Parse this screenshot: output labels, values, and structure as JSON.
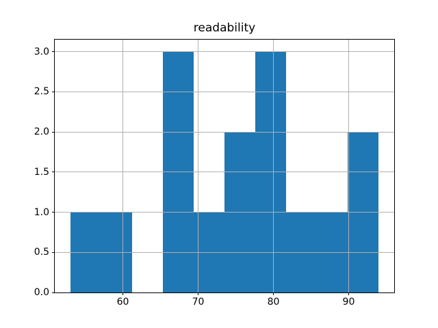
{
  "figure": {
    "background": "#ffffff"
  },
  "chart_data": {
    "type": "histogram",
    "title": "readability",
    "xlabel": "",
    "ylabel": "",
    "bin_edges": [
      53.0,
      57.1,
      61.2,
      65.3,
      69.4,
      73.5,
      77.6,
      81.7,
      85.8,
      89.9,
      94.0
    ],
    "counts": [
      1,
      1,
      0,
      3,
      1,
      2,
      3,
      1,
      1,
      2
    ],
    "xlim": [
      50.95,
      96.05
    ],
    "ylim": [
      0,
      3.15
    ],
    "x_ticks": [
      60,
      70,
      80,
      90
    ],
    "x_tick_labels": [
      "60",
      "70",
      "80",
      "90"
    ],
    "y_ticks": [
      0.0,
      0.5,
      1.0,
      1.5,
      2.0,
      2.5,
      3.0
    ],
    "y_tick_labels": [
      "0.0",
      "0.5",
      "1.0",
      "1.5",
      "2.0",
      "2.5",
      "3.0"
    ],
    "grid": true,
    "grid_position": "above-bars",
    "legend": null,
    "colors": {
      "bar": "#1f77b4",
      "grid": "#b0b0b0",
      "spine": "#000000",
      "text": "#000000",
      "background": "#ffffff"
    }
  }
}
